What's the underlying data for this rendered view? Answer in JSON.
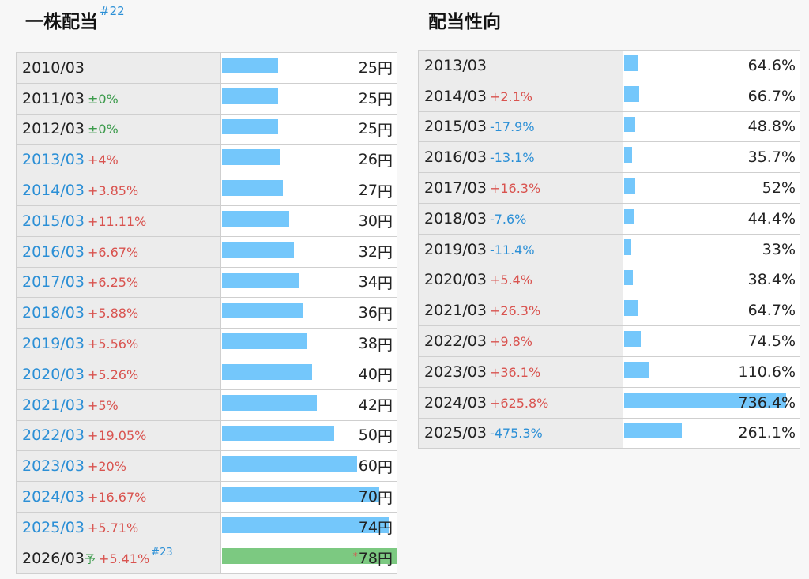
{
  "dividend": {
    "title": "一株配当",
    "footnote": "#22",
    "unit": "円",
    "rows": [
      {
        "period": "2010/03",
        "change": "",
        "value": 25,
        "display": "25",
        "link": false
      },
      {
        "period": "2011/03",
        "change": "±0%",
        "value": 25,
        "display": "25",
        "link": false
      },
      {
        "period": "2012/03",
        "change": "±0%",
        "value": 25,
        "display": "25",
        "link": false
      },
      {
        "period": "2013/03",
        "change": "+4%",
        "value": 26,
        "display": "26",
        "link": true
      },
      {
        "period": "2014/03",
        "change": "+3.85%",
        "value": 27,
        "display": "27",
        "link": true
      },
      {
        "period": "2015/03",
        "change": "+11.11%",
        "value": 30,
        "display": "30",
        "link": true
      },
      {
        "period": "2016/03",
        "change": "+6.67%",
        "value": 32,
        "display": "32",
        "link": true
      },
      {
        "period": "2017/03",
        "change": "+6.25%",
        "value": 34,
        "display": "34",
        "link": true
      },
      {
        "period": "2018/03",
        "change": "+5.88%",
        "value": 36,
        "display": "36",
        "link": true
      },
      {
        "period": "2019/03",
        "change": "+5.56%",
        "value": 38,
        "display": "38",
        "link": true
      },
      {
        "period": "2020/03",
        "change": "+5.26%",
        "value": 40,
        "display": "40",
        "link": true
      },
      {
        "period": "2021/03",
        "change": "+5%",
        "value": 42,
        "display": "42",
        "link": true
      },
      {
        "period": "2022/03",
        "change": "+19.05%",
        "value": 50,
        "display": "50",
        "link": true
      },
      {
        "period": "2023/03",
        "change": "+20%",
        "value": 60,
        "display": "60",
        "link": true
      },
      {
        "period": "2024/03",
        "change": "+16.67%",
        "value": 70,
        "display": "70",
        "link": true
      },
      {
        "period": "2025/03",
        "change": "+5.71%",
        "value": 74,
        "display": "74",
        "link": true
      },
      {
        "period": "2026/03",
        "forecast_mark": "予",
        "change": "+5.41%",
        "footnote": "#23",
        "value": 78,
        "display": "78",
        "star": "*",
        "forecast": true,
        "link": false
      }
    ]
  },
  "payout": {
    "title": "配当性向",
    "unit": "%",
    "rows": [
      {
        "period": "2013/03",
        "change": "",
        "value": 64.6,
        "display": "64.6"
      },
      {
        "period": "2014/03",
        "change": "+2.1%",
        "value": 66.7,
        "display": "66.7"
      },
      {
        "period": "2015/03",
        "change": "-17.9%",
        "value": 48.8,
        "display": "48.8"
      },
      {
        "period": "2016/03",
        "change": "-13.1%",
        "value": 35.7,
        "display": "35.7"
      },
      {
        "period": "2017/03",
        "change": "+16.3%",
        "value": 52,
        "display": "52"
      },
      {
        "period": "2018/03",
        "change": "-7.6%",
        "value": 44.4,
        "display": "44.4"
      },
      {
        "period": "2019/03",
        "change": "-11.4%",
        "value": 33,
        "display": "33"
      },
      {
        "period": "2020/03",
        "change": "+5.4%",
        "value": 38.4,
        "display": "38.4"
      },
      {
        "period": "2021/03",
        "change": "+26.3%",
        "value": 64.7,
        "display": "64.7"
      },
      {
        "period": "2022/03",
        "change": "+9.8%",
        "value": 74.5,
        "display": "74.5"
      },
      {
        "period": "2023/03",
        "change": "+36.1%",
        "value": 110.6,
        "display": "110.6"
      },
      {
        "period": "2024/03",
        "change": "+625.8%",
        "value": 736.4,
        "display": "736.4"
      },
      {
        "period": "2025/03",
        "change": "-475.3%",
        "value": 261.1,
        "display": "261.1"
      }
    ]
  },
  "colors": {
    "bar": "#74c7fb",
    "forecast_bar": "#7cc981",
    "increase": "#d9534f",
    "decrease": "#2b8fd6",
    "flat": "#3a9a4a"
  }
}
